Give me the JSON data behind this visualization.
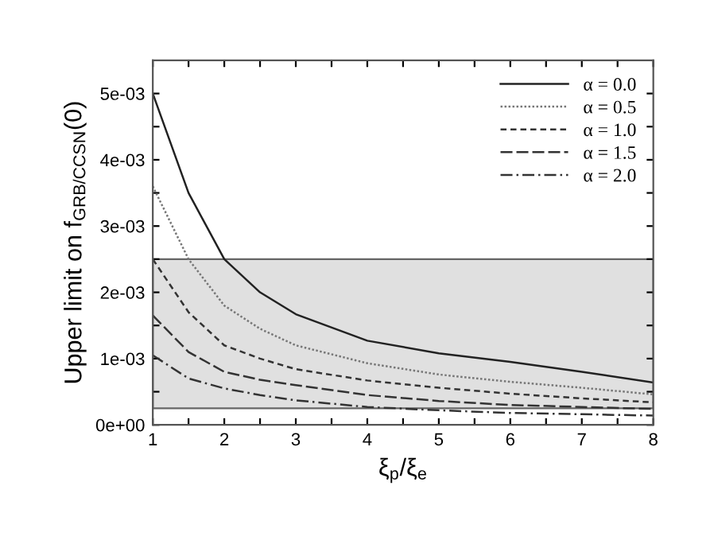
{
  "chart_data": {
    "type": "line",
    "xlabel": "ξ$_{p}$/ξ$_{e}$",
    "ylabel": "Upper limit on f$_{GRB/CCSN}$(0)",
    "x": [
      1,
      1.5,
      2,
      2.5,
      3,
      4,
      5,
      6,
      7,
      8
    ],
    "series": [
      {
        "name": "α = 0.0",
        "color": "#222222",
        "line_style": "solid",
        "values": [
          0.005,
          0.0035,
          0.0025,
          0.002,
          0.00167,
          0.00127,
          0.00108,
          0.00095,
          0.0008,
          0.00064
        ]
      },
      {
        "name": "α = 0.5",
        "color": "#777777",
        "line_style": "dotted",
        "values": [
          0.0036,
          0.0025,
          0.0018,
          0.00145,
          0.0012,
          0.00093,
          0.00076,
          0.00065,
          0.00056,
          0.00046
        ]
      },
      {
        "name": "α = 1.0",
        "color": "#333333",
        "line_style": "dashed",
        "values": [
          0.0025,
          0.0017,
          0.0012,
          0.001,
          0.00084,
          0.00067,
          0.00056,
          0.00047,
          0.0004,
          0.00034
        ]
      },
      {
        "name": "α = 1.5",
        "color": "#333333",
        "line_style": "longdashed",
        "values": [
          0.00165,
          0.0011,
          0.0008,
          0.00068,
          0.0006,
          0.00045,
          0.00036,
          0.0003,
          0.00027,
          0.00024
        ]
      },
      {
        "name": "α = 2.0",
        "color": "#333333",
        "line_style": "dashdot",
        "values": [
          0.00105,
          0.0007,
          0.00055,
          0.00045,
          0.00037,
          0.00027,
          0.00022,
          0.00018,
          0.00016,
          0.00014
        ]
      }
    ],
    "bands": [
      {
        "axis": "y",
        "from": 0.00025,
        "to": 0.0025,
        "color": "#e0e0e0"
      }
    ],
    "xlim": [
      1,
      8
    ],
    "xticks": [
      1,
      {
        "value": 1.5,
        "label": null
      },
      2,
      {
        "value": 2.5,
        "label": null
      },
      3,
      {
        "value": 3.5,
        "label": null
      },
      4,
      {
        "value": 4.5,
        "label": null
      },
      5,
      {
        "value": 5.5,
        "label": null
      },
      6,
      {
        "value": 6.5,
        "label": null
      },
      7,
      {
        "value": 7.5,
        "label": null
      },
      8
    ],
    "ylim": [
      0,
      0.0055
    ],
    "yticks": [
      {
        "value": 0,
        "label": "0e+00"
      },
      {
        "value": 0.0005,
        "label": null
      },
      {
        "value": 0.001,
        "label": "1e-03"
      },
      {
        "value": 0.0015,
        "label": null
      },
      {
        "value": 0.002,
        "label": "2e-03"
      },
      {
        "value": 0.0025,
        "label": null
      },
      {
        "value": 0.003,
        "label": "3e-03"
      },
      {
        "value": 0.0035,
        "label": null
      },
      {
        "value": 0.004,
        "label": "4e-03"
      },
      {
        "value": 0.0045,
        "label": null
      },
      {
        "value": 0.005,
        "label": "5e-03"
      }
    ],
    "legend": "top right",
    "grid": false
  }
}
